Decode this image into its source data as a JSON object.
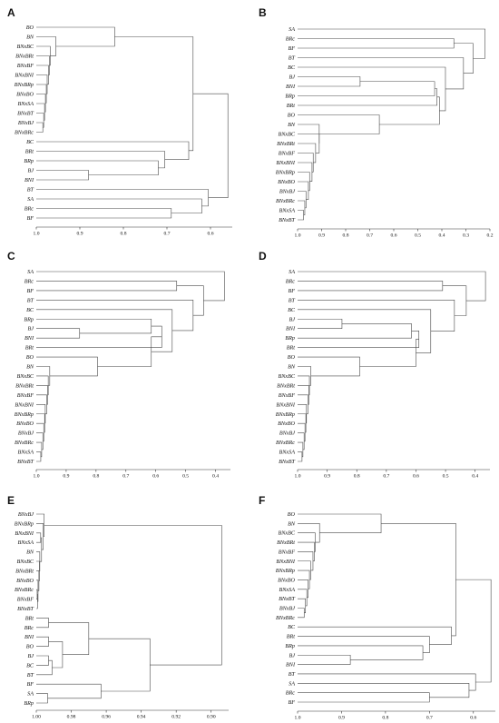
{
  "figure": {
    "background": "#ffffff",
    "line_color": "#4a4a4a"
  },
  "chart_data": [
    {
      "panel": "A",
      "type": "dendrogram",
      "x_ticks": [
        1.0,
        0.9,
        0.8,
        0.7,
        0.6
      ],
      "x_tick_labels": [
        "1.0",
        "0.9",
        "0.8",
        "0.7",
        "0.6"
      ],
      "xlim": [
        1.0,
        0.55
      ],
      "leaves": [
        "BO",
        "BN",
        "BNxBC",
        "BNxBRt",
        "BNxBF",
        "BNxBNI",
        "BNxBRp",
        "BNxBO",
        "BNxSA",
        "BNxBT",
        "BNxBJ",
        "BNxBRc",
        "BC",
        "BRt",
        "BRp",
        "BJ",
        "BNI",
        "BT",
        "SA",
        "BRc",
        "BF"
      ],
      "merges": [
        [
          "BNxBJ",
          "BNxBRc",
          0.985
        ],
        [
          "BNxBT",
          0,
          0.983
        ],
        [
          "BNxSA",
          1,
          0.981
        ],
        [
          "BNxBO",
          2,
          0.979
        ],
        [
          "BNxBRp",
          3,
          0.977
        ],
        [
          "BNxBNI",
          4,
          0.975
        ],
        [
          "BNxBF",
          5,
          0.972
        ],
        [
          "BNxBRt",
          6,
          0.97
        ],
        [
          "BNxBC",
          7,
          0.968
        ],
        [
          "BN",
          8,
          0.955
        ],
        [
          "BO",
          9,
          0.82
        ],
        [
          "BJ",
          "BNI",
          0.88
        ],
        [
          "BRp",
          11,
          0.72
        ],
        [
          "BRt",
          12,
          0.705
        ],
        [
          "BC",
          13,
          0.65
        ],
        [
          10,
          14,
          0.64
        ],
        [
          "BRc",
          "BF",
          0.69
        ],
        [
          "SA",
          16,
          0.62
        ],
        [
          "BT",
          17,
          0.605
        ],
        [
          15,
          18,
          0.56
        ]
      ]
    },
    {
      "panel": "B",
      "type": "dendrogram",
      "x_ticks": [
        1.0,
        0.9,
        0.8,
        0.7,
        0.6,
        0.5,
        0.4,
        0.3,
        0.2
      ],
      "x_tick_labels": [
        "1.0",
        "0.9",
        "0.8",
        "0.7",
        "0.6",
        "0.5",
        "0.4",
        "0.3",
        "0.2"
      ],
      "xlim": [
        1.0,
        0.2
      ],
      "leaves": [
        "SA",
        "BRc",
        "BF",
        "BT",
        "BC",
        "BJ",
        "BNI",
        "BRp",
        "BRt",
        "BO",
        "BN",
        "BNxBC",
        "BNxBRt",
        "BNxBF",
        "BNxBNI",
        "BNxBRp",
        "BNxBO",
        "BNxBJ",
        "BNxBRc",
        "BNxSA",
        "BNxBT"
      ],
      "merges": [
        [
          "BNxSA",
          "BNxBT",
          0.975
        ],
        [
          "BNxBRc",
          0,
          0.97
        ],
        [
          "BNxBJ",
          1,
          0.965
        ],
        [
          "BNxBO",
          2,
          0.955
        ],
        [
          "BNxBRp",
          3,
          0.95
        ],
        [
          "BNxBNI",
          4,
          0.94
        ],
        [
          "BNxBF",
          5,
          0.935
        ],
        [
          "BNxBRt",
          6,
          0.925
        ],
        [
          "BNxBC",
          7,
          0.91
        ],
        [
          "BN",
          8,
          0.91
        ],
        [
          "BO",
          9,
          0.66
        ],
        [
          "BJ",
          "BNI",
          0.74
        ],
        [
          11,
          "BRp",
          0.43
        ],
        [
          12,
          "BRt",
          0.42
        ],
        [
          10,
          13,
          0.41
        ],
        [
          "BC",
          14,
          0.385
        ],
        [
          "BT",
          15,
          0.31
        ],
        [
          "BRc",
          "BF",
          0.35
        ],
        [
          17,
          16,
          0.27
        ],
        [
          "SA",
          18,
          0.22
        ]
      ]
    },
    {
      "panel": "C",
      "type": "dendrogram",
      "x_ticks": [
        1.0,
        0.9,
        0.8,
        0.7,
        0.6,
        0.5,
        0.4
      ],
      "x_tick_labels": [
        "1.0",
        "0.9",
        "0.8",
        "0.7",
        "0.6",
        "0.5",
        "0.4"
      ],
      "xlim": [
        1.0,
        0.35
      ],
      "leaves": [
        "SA",
        "BRc",
        "BF",
        "BT",
        "BC",
        "BRp",
        "BJ",
        "BNI",
        "BRt",
        "BO",
        "BN",
        "BNxBC",
        "BNxBRt",
        "BNxBF",
        "BNxBNI",
        "BNxBRp",
        "BNxBO",
        "BNxBJ",
        "BNxBRc",
        "BNxSA",
        "BNxBT"
      ],
      "merges": [
        [
          "BNxSA",
          "BNxBT",
          0.985
        ],
        [
          "BNxBRc",
          0,
          0.982
        ],
        [
          "BNxBJ",
          1,
          0.978
        ],
        [
          "BNxBO",
          2,
          0.975
        ],
        [
          "BNxBRp",
          3,
          0.972
        ],
        [
          "BNxBNI",
          4,
          0.97
        ],
        [
          "BNxBF",
          5,
          0.965
        ],
        [
          "BNxBRt",
          6,
          0.962
        ],
        [
          "BNxBC",
          7,
          0.96
        ],
        [
          "BN",
          8,
          0.955
        ],
        [
          "BO",
          9,
          0.795
        ],
        [
          "BJ",
          "BNI",
          0.855
        ],
        [
          "BRp",
          11,
          0.615
        ],
        [
          12,
          "BRt",
          0.58
        ],
        [
          10,
          13,
          0.615
        ],
        [
          "BC",
          14,
          0.545
        ],
        [
          "BT",
          15,
          0.475
        ],
        [
          "BRc",
          "BF",
          0.53
        ],
        [
          17,
          16,
          0.44
        ],
        [
          "SA",
          18,
          0.37
        ]
      ]
    },
    {
      "panel": "D",
      "type": "dendrogram",
      "x_ticks": [
        1.0,
        0.9,
        0.8,
        0.7,
        0.6,
        0.5,
        0.4
      ],
      "x_tick_labels": [
        "1.0",
        "0.9",
        "0.8",
        "0.7",
        "0.6",
        "0.5",
        "0.4"
      ],
      "xlim": [
        1.0,
        0.35
      ],
      "leaves": [
        "SA",
        "BRc",
        "BF",
        "BT",
        "BC",
        "BJ",
        "BNI",
        "BRp",
        "BRt",
        "BO",
        "BN",
        "BNxBC",
        "BNxBRt",
        "BNxBF",
        "BNxBNI",
        "BNxBRp",
        "BNxBO",
        "BNxBJ",
        "BNxBRc",
        "BNxSA",
        "BNxBT"
      ],
      "merges": [
        [
          "BNxSA",
          "BNxBT",
          0.985
        ],
        [
          "BNxBRc",
          0,
          0.982
        ],
        [
          "BNxBJ",
          1,
          0.978
        ],
        [
          "BNxBO",
          2,
          0.975
        ],
        [
          "BNxBRp",
          3,
          0.972
        ],
        [
          "BNxBNI",
          4,
          0.97
        ],
        [
          "BNxBF",
          5,
          0.965
        ],
        [
          "BNxBRt",
          6,
          0.962
        ],
        [
          "BNxBC",
          7,
          0.96
        ],
        [
          "BN",
          8,
          0.955
        ],
        [
          "BO",
          9,
          0.79
        ],
        [
          "BJ",
          "BNI",
          0.85
        ],
        [
          11,
          "BRp",
          0.615
        ],
        [
          12,
          "BRt",
          0.59
        ],
        [
          10,
          13,
          0.6
        ],
        [
          "BC",
          14,
          0.55
        ],
        [
          "BT",
          15,
          0.47
        ],
        [
          "BRc",
          "BF",
          0.51
        ],
        [
          17,
          16,
          0.43
        ],
        [
          "SA",
          18,
          0.365
        ]
      ]
    },
    {
      "panel": "E",
      "type": "dendrogram",
      "x_ticks": [
        1.0,
        0.98,
        0.96,
        0.94,
        0.92,
        0.9
      ],
      "x_tick_labels": [
        "1.00",
        "0.98",
        "0.96",
        "0.94",
        "0.92",
        "0.90"
      ],
      "xlim": [
        1.0,
        0.89
      ],
      "leaves": [
        "BNxBJ",
        "BNxBRp",
        "BNxBNI",
        "BNxSA",
        "BN",
        "BNxBC",
        "BNxBRt",
        "BNxBO",
        "BNxBRc",
        "BNxBF",
        "BNxBT",
        "BRt",
        "BRc",
        "BNI",
        "BO",
        "BJ",
        "BC",
        "BT",
        "BF",
        "SA",
        "BRp"
      ],
      "merges": [
        [
          "BNxBRc",
          "BNxBF",
          0.9995
        ],
        [
          0,
          "BNxBT",
          0.9993
        ],
        [
          "BNxBO",
          1,
          0.999
        ],
        [
          "BNxBRt",
          2,
          0.9985
        ],
        [
          "BNxBC",
          3,
          0.9982
        ],
        [
          "BN",
          4,
          0.998
        ],
        [
          "BNxBNI",
          "BNxSA",
          0.9975
        ],
        [
          6,
          5,
          0.997
        ],
        [
          "BNxBRp",
          7,
          0.996
        ],
        [
          "BNxBJ",
          8,
          0.9955
        ],
        [
          "BRt",
          "BRc",
          0.993
        ],
        [
          "BNI",
          "BO",
          0.993
        ],
        [
          "BJ",
          "BC",
          0.993
        ],
        [
          12,
          "BT",
          0.991
        ],
        [
          11,
          13,
          0.985
        ],
        [
          10,
          14,
          0.97
        ],
        [
          "SA",
          "BRp",
          0.9935
        ],
        [
          "BF",
          16,
          0.963
        ],
        [
          15,
          17,
          0.935
        ],
        [
          9,
          18,
          0.894
        ]
      ]
    },
    {
      "panel": "F",
      "type": "dendrogram",
      "x_ticks": [
        1.0,
        0.9,
        0.8,
        0.7,
        0.6
      ],
      "x_tick_labels": [
        "1.0",
        "0.9",
        "0.8",
        "0.7",
        "0.6"
      ],
      "xlim": [
        1.0,
        0.55
      ],
      "leaves": [
        "BO",
        "BN",
        "BNxBC",
        "BNxBRt",
        "BNxBF",
        "BNxBNI",
        "BNxBRp",
        "BNxBO",
        "BNxSA",
        "BNxBT",
        "BNxBJ",
        "BNxBRc",
        "BC",
        "BRt",
        "BRp",
        "BJ",
        "BNI",
        "BT",
        "SA",
        "BRc",
        "BF"
      ],
      "merges": [
        [
          "BNxBJ",
          "BNxBRc",
          0.985
        ],
        [
          "BNxBT",
          0,
          0.982
        ],
        [
          "BNxSA",
          1,
          0.979
        ],
        [
          "BNxBO",
          2,
          0.976
        ],
        [
          "BNxBRp",
          3,
          0.973
        ],
        [
          "BNxBNI",
          4,
          0.97
        ],
        [
          "BNxBF",
          5,
          0.965
        ],
        [
          "BNxBRt",
          6,
          0.962
        ],
        [
          "BNxBC",
          7,
          0.96
        ],
        [
          "BN",
          8,
          0.95
        ],
        [
          "BO",
          9,
          0.81
        ],
        [
          "BJ",
          "BNI",
          0.88
        ],
        [
          "BRp",
          11,
          0.715
        ],
        [
          "BRt",
          12,
          0.7
        ],
        [
          "BC",
          13,
          0.65
        ],
        [
          10,
          14,
          0.64
        ],
        [
          "BRc",
          "BF",
          0.7
        ],
        [
          "SA",
          16,
          0.61
        ],
        [
          "BT",
          17,
          0.595
        ],
        [
          15,
          18,
          0.56
        ]
      ]
    }
  ]
}
